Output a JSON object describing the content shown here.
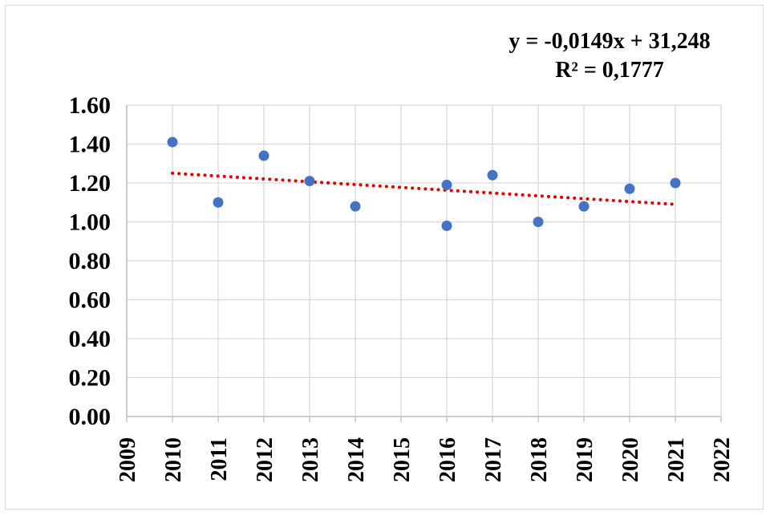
{
  "chart_data": {
    "type": "scatter",
    "title": "",
    "xlabel": "",
    "ylabel": "",
    "xlim": [
      2009,
      2022
    ],
    "ylim": [
      0,
      1.6
    ],
    "x_ticks": [
      "2009",
      "2010",
      "2011",
      "2012",
      "2013",
      "2014",
      "2015",
      "2016",
      "2017",
      "2018",
      "2019",
      "2020",
      "2021",
      "2022"
    ],
    "y_ticks": [
      "0.00",
      "0.20",
      "0.40",
      "0.60",
      "0.80",
      "1.00",
      "1.20",
      "1.40",
      "1.60"
    ],
    "grid": true,
    "legend": "none",
    "series": [
      {
        "color": "#4472c4",
        "points": [
          {
            "x": 2010,
            "y": 1.41
          },
          {
            "x": 2011,
            "y": 1.1
          },
          {
            "x": 2012,
            "y": 1.34
          },
          {
            "x": 2013,
            "y": 1.21
          },
          {
            "x": 2014,
            "y": 1.08
          },
          {
            "x": 2016,
            "y": 1.19
          },
          {
            "x": 2016,
            "y": 0.98
          },
          {
            "x": 2017,
            "y": 1.24
          },
          {
            "x": 2018,
            "y": 1.0
          },
          {
            "x": 2019,
            "y": 1.08
          },
          {
            "x": 2020,
            "y": 1.17
          },
          {
            "x": 2021,
            "y": 1.2
          }
        ]
      }
    ],
    "trendline": {
      "type": "linear",
      "style": "dotted",
      "color": "#e00000",
      "x_range": [
        2010,
        2021
      ],
      "y_range": [
        1.25,
        1.09
      ],
      "equation": "y = -0,0149x + 31,248",
      "r_squared": "R² = 0,1777"
    }
  }
}
